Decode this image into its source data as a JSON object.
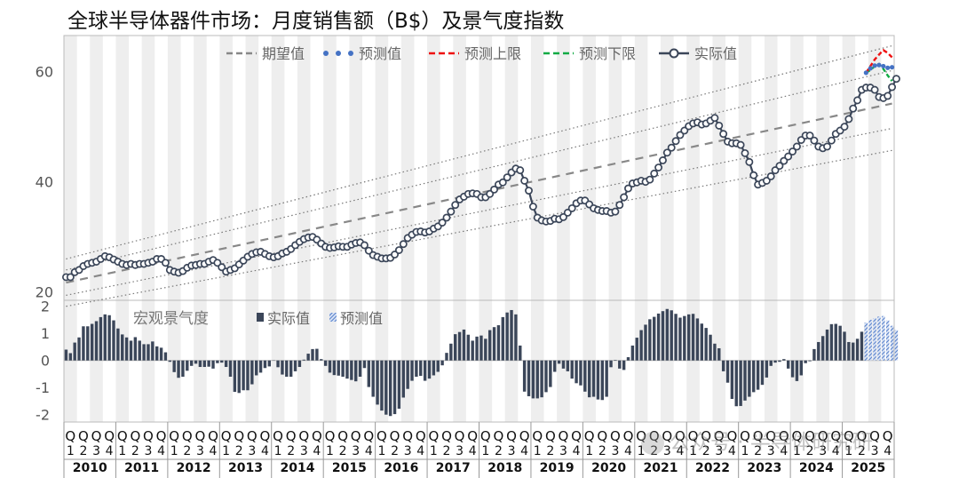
{
  "chart_data": [
    {
      "type": "line",
      "title": "全球半导体器件市场：月度销售额（B$）及景气度指数",
      "ylim": [
        20,
        65
      ],
      "yticks": [
        "20",
        "40",
        "60"
      ],
      "legend": {
        "position": "top-right",
        "items": [
          {
            "label": "期望值",
            "style": "dashed",
            "color": "#888888"
          },
          {
            "label": "预测值",
            "style": "dots",
            "color": "#4472c4"
          },
          {
            "label": "预测上限",
            "style": "dashed",
            "color": "#ee1111"
          },
          {
            "label": "预测下限",
            "style": "dashed",
            "color": "#11aa44"
          },
          {
            "label": "实际值",
            "style": "line-marker",
            "color": "#3b4659"
          }
        ]
      },
      "colors": {
        "actual": "#3b4659",
        "expected": "#888888",
        "band": "#777777",
        "forecast": "#4472c4",
        "upper": "#ee1111",
        "lower": "#11aa44",
        "stripe": "#eeeeee"
      },
      "trend": {
        "name": "期望值",
        "start": 21.5,
        "end": 54.0
      },
      "bands": [
        {
          "start": 25.8,
          "end": 64.5
        },
        {
          "start": 23.8,
          "end": 60.0
        },
        {
          "start": 19.2,
          "end": 49.5
        },
        {
          "start": 17.2,
          "end": 45.5
        }
      ],
      "series": [
        {
          "name": "实际值",
          "start": "2010-01",
          "values": [
            22.5,
            22.5,
            23.4,
            23.8,
            24.5,
            24.9,
            25.1,
            25.3,
            25.8,
            26.3,
            26.1,
            25.7,
            25.3,
            24.9,
            24.7,
            24.9,
            24.7,
            24.9,
            24.9,
            25.1,
            25.3,
            25.8,
            25.8,
            25.1,
            23.8,
            23.5,
            23.3,
            23.6,
            24.2,
            24.6,
            24.7,
            24.9,
            24.9,
            25.3,
            25.6,
            25.1,
            24.3,
            23.5,
            23.8,
            24.1,
            24.8,
            25.5,
            26.2,
            26.7,
            27.0,
            27.1,
            26.7,
            26.3,
            26.1,
            26.3,
            26.8,
            27.1,
            27.6,
            28.3,
            28.9,
            29.4,
            29.7,
            29.8,
            29.3,
            28.6,
            28.0,
            27.8,
            27.9,
            28.1,
            28.0,
            28.0,
            28.4,
            28.7,
            28.8,
            28.3,
            27.3,
            26.5,
            26.2,
            25.9,
            25.9,
            26.0,
            26.6,
            27.4,
            28.5,
            29.6,
            30.2,
            30.7,
            30.8,
            30.6,
            30.8,
            31.3,
            31.7,
            32.4,
            33.3,
            34.4,
            35.6,
            36.6,
            37.1,
            37.6,
            37.7,
            37.6,
            37.0,
            37.0,
            37.6,
            38.4,
            39.3,
            39.7,
            40.6,
            41.5,
            42.2,
            41.9,
            40.0,
            38.2,
            35.3,
            33.3,
            32.8,
            32.6,
            32.7,
            33.1,
            33.0,
            33.4,
            34.2,
            35.0,
            35.9,
            36.4,
            36.4,
            35.7,
            35.0,
            34.7,
            34.5,
            34.5,
            34.2,
            34.4,
            35.6,
            37.0,
            38.6,
            39.5,
            39.7,
            40.0,
            39.8,
            40.2,
            41.3,
            42.4,
            43.7,
            45.1,
            46.0,
            47.2,
            48.3,
            49.1,
            49.9,
            50.4,
            50.6,
            50.2,
            50.4,
            50.9,
            51.4,
            50.0,
            48.5,
            47.1,
            46.8,
            46.8,
            46.5,
            45.0,
            43.4,
            41.0,
            39.3,
            39.6,
            40.0,
            40.8,
            41.9,
            42.7,
            43.6,
            44.4,
            45.3,
            46.2,
            47.4,
            48.2,
            48.2,
            47.3,
            46.2,
            45.9,
            46.2,
            47.3,
            48.5,
            49.1,
            49.8,
            51.2,
            53.1,
            54.6,
            56.5,
            56.9,
            56.9,
            56.5,
            55.2,
            55.0,
            55.4,
            57.0,
            58.5
          ]
        },
        {
          "name": "预测值",
          "start": "2025-06",
          "values": [
            59.6,
            60.4,
            60.9,
            61.0,
            60.8,
            60.5,
            60.6
          ]
        },
        {
          "name": "预测上限",
          "start": "2025-06",
          "values": [
            59.6,
            60.8,
            62.0,
            62.9,
            63.7,
            63.2,
            62.4
          ]
        },
        {
          "name": "预测下限",
          "start": "2025-06",
          "values": [
            59.6,
            60.1,
            60.8,
            61.2,
            60.3,
            59.1,
            58.1
          ]
        }
      ]
    },
    {
      "type": "bar",
      "title": "宏观景气度",
      "ylim": [
        -2,
        2
      ],
      "yticks": [
        "2",
        "1",
        "0",
        "-1",
        "-2"
      ],
      "legend": {
        "position": "top-left",
        "items": [
          {
            "label": "实际值",
            "style": "solid",
            "color": "#3b4659"
          },
          {
            "label": "预测值",
            "style": "hatched",
            "color": "#4472c4"
          }
        ]
      },
      "series": [
        {
          "name": "实际值",
          "start": "2010-01",
          "values": [
            0.4,
            0.27,
            0.66,
            0.85,
            1.26,
            1.26,
            1.35,
            1.45,
            1.6,
            1.7,
            1.67,
            1.48,
            1.18,
            0.96,
            0.85,
            0.73,
            0.86,
            0.73,
            0.6,
            0.6,
            0.7,
            0.52,
            0.47,
            0.3,
            -0.05,
            -0.43,
            -0.64,
            -0.6,
            -0.38,
            -0.2,
            -0.12,
            -0.24,
            -0.24,
            -0.23,
            -0.3,
            -0.1,
            -0.08,
            -0.24,
            -0.6,
            -1.16,
            -1.2,
            -1.1,
            -1.1,
            -0.88,
            -0.55,
            -0.45,
            -0.28,
            -0.22,
            0.01,
            -0.25,
            -0.52,
            -0.6,
            -0.6,
            -0.4,
            -0.24,
            0.03,
            0.25,
            0.42,
            0.43,
            0.05,
            -0.2,
            -0.45,
            -0.54,
            -0.56,
            -0.6,
            -0.67,
            -0.72,
            -0.77,
            -0.6,
            -0.28,
            -0.98,
            -1.34,
            -1.63,
            -1.85,
            -2.0,
            -2.05,
            -1.98,
            -1.78,
            -1.37,
            -1.05,
            -0.75,
            -0.6,
            -0.57,
            -0.75,
            -0.67,
            -0.55,
            -0.42,
            -0.18,
            0.28,
            0.62,
            0.97,
            1.05,
            1.14,
            0.95,
            0.73,
            0.88,
            0.92,
            0.8,
            1.12,
            1.23,
            1.3,
            1.6,
            1.77,
            1.86,
            1.7,
            0.55,
            -1.15,
            -1.32,
            -1.4,
            -1.4,
            -1.36,
            -1.17,
            -0.98,
            -0.42,
            -0.12,
            -0.3,
            -0.4,
            -0.67,
            -0.84,
            -0.92,
            -1.15,
            -1.36,
            -1.34,
            -1.44,
            -1.46,
            -1.34,
            -0.25,
            0.02,
            -0.3,
            -0.35,
            0.12,
            0.55,
            0.84,
            1.12,
            1.32,
            1.52,
            1.61,
            1.73,
            1.82,
            1.9,
            1.85,
            1.72,
            1.58,
            1.64,
            1.7,
            1.72,
            1.55,
            1.36,
            1.2,
            0.95,
            0.62,
            0.45,
            -0.4,
            -0.82,
            -1.42,
            -1.69,
            -1.68,
            -1.48,
            -1.34,
            -1.17,
            -1.08,
            -0.9,
            -0.63,
            -0.2,
            -0.08,
            -0.05,
            0.05,
            -0.3,
            -0.62,
            -0.76,
            -0.55,
            -0.1,
            -0.03,
            0.42,
            0.68,
            0.9,
            1.14,
            1.34,
            1.35,
            1.28,
            1.06,
            0.68,
            0.66,
            0.8,
            1.06,
            1.32
          ]
        },
        {
          "name": "预测值",
          "start": "2025-06",
          "values": [
            1.4,
            1.5,
            1.56,
            1.62,
            1.64,
            1.48,
            1.28,
            1.12
          ]
        }
      ],
      "xaxis": {
        "years": [
          "2010",
          "2011",
          "2012",
          "2013",
          "2014",
          "2015",
          "2016",
          "2017",
          "2018",
          "2019",
          "2020",
          "2021",
          "2022",
          "2023",
          "2024",
          "2025"
        ],
        "quarter_letter": "Q",
        "quarters": [
          "1",
          "2",
          "3",
          "4"
        ]
      }
    }
  ],
  "watermark": "公众号 · 半导体研究研"
}
